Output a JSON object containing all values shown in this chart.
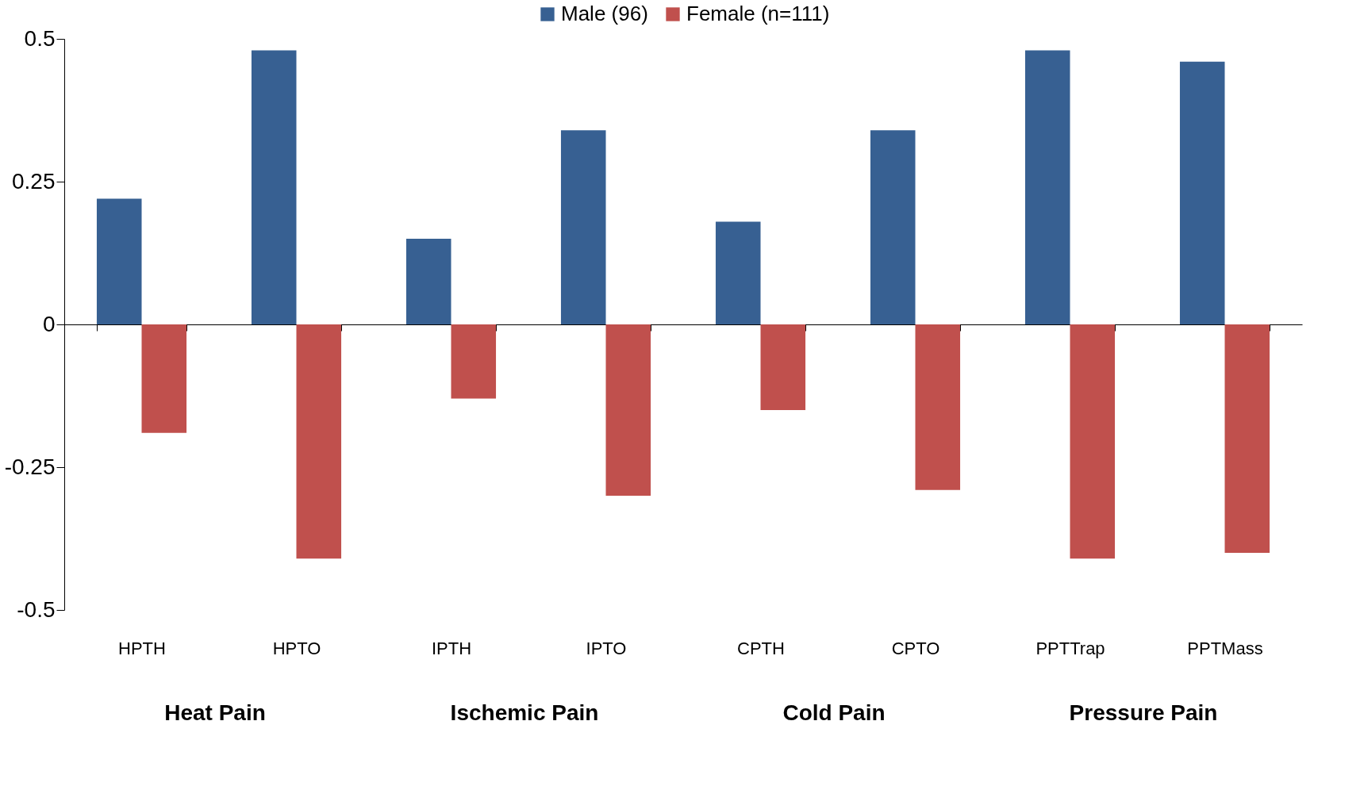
{
  "chart_data": {
    "type": "bar",
    "categories": [
      "HPTH",
      "HPTO",
      "IPTH",
      "IPTO",
      "CPTH",
      "CPTO",
      "PPTTrap",
      "PPTMass"
    ],
    "series": [
      {
        "name": "Male  (96)",
        "color": "#376092",
        "values": [
          0.22,
          0.48,
          0.15,
          0.34,
          0.18,
          0.34,
          0.48,
          0.46
        ]
      },
      {
        "name": "Female (n=111)",
        "color": "#c0504d",
        "values": [
          -0.19,
          -0.41,
          -0.13,
          -0.3,
          -0.15,
          -0.29,
          -0.41,
          -0.4
        ]
      }
    ],
    "ylim": [
      -0.5,
      0.5
    ],
    "yticks": [
      -0.5,
      -0.25,
      0,
      0.25,
      0.5
    ],
    "legend": "top",
    "annotations": [
      "Heat Pain",
      "Ischemic Pain",
      "Cold Pain",
      "Pressure Pain"
    ]
  }
}
